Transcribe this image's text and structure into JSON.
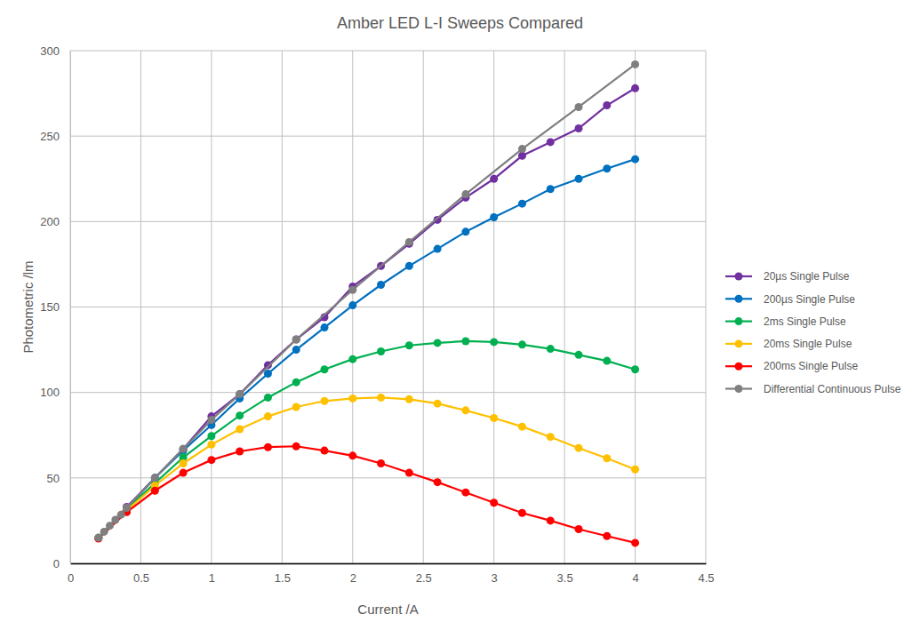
{
  "chart_data": {
    "type": "line",
    "title": "Amber LED L-I Sweeps Compared",
    "x_label": "Current /A",
    "y_label": "Photometric /lm",
    "xlim": [
      0,
      4.5
    ],
    "xticks": [
      0,
      0.5,
      1,
      1.5,
      2,
      2.5,
      3,
      3.5,
      4,
      4.5
    ],
    "ylim": [
      0,
      300
    ],
    "yticks": [
      0,
      50,
      100,
      150,
      200,
      250,
      300
    ],
    "grid": true,
    "legend": "right",
    "marker": "circle",
    "series": [
      {
        "name": "20µs Single Pulse",
        "color": "#7030a0",
        "x": [
          0.2,
          0.4,
          0.6,
          0.8,
          1.0,
          1.2,
          1.4,
          1.6,
          1.8,
          2.0,
          2.2,
          2.4,
          2.6,
          2.8,
          3.0,
          3.2,
          3.4,
          3.6,
          3.8,
          4.0
        ],
        "values": [
          15,
          33,
          50,
          67,
          86,
          99,
          116,
          131,
          144,
          162,
          174,
          187,
          201,
          214,
          225,
          238.5,
          246.5,
          254.5,
          268,
          278
        ]
      },
      {
        "name": "200µs Single Pulse",
        "color": "#0070c0",
        "x": [
          0.2,
          0.4,
          0.6,
          0.8,
          1.0,
          1.2,
          1.4,
          1.6,
          1.8,
          2.0,
          2.2,
          2.4,
          2.6,
          2.8,
          3.0,
          3.2,
          3.4,
          3.6,
          3.8,
          4.0
        ],
        "values": [
          15,
          32,
          50,
          66,
          81,
          96.5,
          111,
          125,
          138,
          151,
          163,
          174,
          184,
          194,
          202.5,
          210.5,
          219,
          225,
          231,
          236.5
        ]
      },
      {
        "name": "2ms Single Pulse",
        "color": "#00b050",
        "x": [
          0.2,
          0.4,
          0.6,
          0.8,
          1.0,
          1.2,
          1.4,
          1.6,
          1.8,
          2.0,
          2.2,
          2.4,
          2.6,
          2.8,
          3.0,
          3.2,
          3.4,
          3.6,
          3.8,
          4.0
        ],
        "values": [
          15,
          31.5,
          47,
          62,
          74.5,
          86.5,
          97,
          106,
          113.5,
          119.5,
          124,
          127.5,
          129,
          130,
          129.5,
          128,
          125.5,
          122,
          118.5,
          113.5
        ]
      },
      {
        "name": "20ms Single Pulse",
        "color": "#ffc000",
        "x": [
          0.2,
          0.4,
          0.6,
          0.8,
          1.0,
          1.2,
          1.4,
          1.6,
          1.8,
          2.0,
          2.2,
          2.4,
          2.6,
          2.8,
          3.0,
          3.2,
          3.4,
          3.6,
          3.8,
          4.0
        ],
        "values": [
          15,
          31,
          45.5,
          58.5,
          69.5,
          78.5,
          86,
          91.5,
          95,
          96.5,
          97,
          96,
          93.5,
          89.5,
          85,
          80,
          74,
          67.5,
          61.5,
          55
        ]
      },
      {
        "name": "200ms Single Pulse",
        "color": "#ff0000",
        "x": [
          0.2,
          0.4,
          0.6,
          0.8,
          1.0,
          1.2,
          1.4,
          1.6,
          1.8,
          2.0,
          2.2,
          2.4,
          2.6,
          2.8,
          3.0,
          3.2,
          3.4,
          3.6,
          3.8,
          4.0
        ],
        "values": [
          14.5,
          30,
          42.5,
          53,
          60.5,
          65.5,
          68,
          68.5,
          66,
          63,
          58.5,
          53,
          47.5,
          41.5,
          35.5,
          29.5,
          25,
          20,
          16,
          12
        ]
      },
      {
        "name": "Differential Continuous Pulse",
        "color": "#7f7f7f",
        "x": [
          0.2,
          0.24,
          0.28,
          0.32,
          0.36,
          0.4,
          0.6,
          0.8,
          1.0,
          1.2,
          1.6,
          2.0,
          2.4,
          2.8,
          3.2,
          3.6,
          4.0
        ],
        "values": [
          15,
          18.5,
          22,
          25.5,
          28.5,
          32.5,
          50,
          67,
          84,
          99,
          131,
          160,
          188,
          216,
          242.5,
          267,
          292
        ]
      }
    ]
  }
}
